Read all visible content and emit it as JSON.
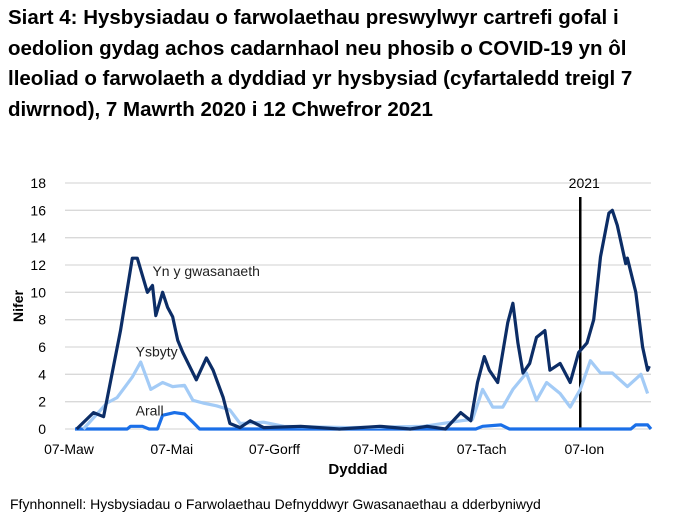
{
  "chart_data": {
    "type": "line",
    "title": "Siart 4: Hysbysiadau o farwolaethau preswylwyr cartrefi gofal i oedolion gydag achos cadarnhaol neu phosib o COVID-19 yn ôl lleoliad o farwolaeth a dyddiad yr hysbysiad (cyfartaledd treigl 7 diwrnod), 7 Mawrth 2020 i 12 Chwefror 2021",
    "xlabel": "Dyddiad",
    "ylabel": "Nifer",
    "xlim": [
      "2020-03-07",
      "2021-02-12"
    ],
    "ylim": [
      0,
      18
    ],
    "yticks": [
      0,
      2,
      4,
      6,
      8,
      10,
      12,
      14,
      16,
      18
    ],
    "xticks": [
      {
        "date": "2020-03-07",
        "label": "07-Maw"
      },
      {
        "date": "2020-05-07",
        "label": "07-Mai"
      },
      {
        "date": "2020-07-07",
        "label": "07-Gorff"
      },
      {
        "date": "2020-09-07",
        "label": "07-Medi"
      },
      {
        "date": "2020-11-07",
        "label": "07-Tach"
      },
      {
        "date": "2021-01-07",
        "label": "07-Ion"
      }
    ],
    "grid": "horizontal",
    "annotation": {
      "date": "2021-01-01",
      "label": "2021"
    },
    "series": [
      {
        "name": "Yn y gwasanaeth",
        "color": "#0c2d66",
        "label_at": {
          "date": "2020-04-22",
          "value": 11.2
        },
        "points": [
          [
            "2020-03-08",
            0
          ],
          [
            "2020-03-18",
            1.2
          ],
          [
            "2020-03-24",
            0.9
          ],
          [
            "2020-04-03",
            7.2
          ],
          [
            "2020-04-10",
            12.5
          ],
          [
            "2020-04-13",
            12.5
          ],
          [
            "2020-04-19",
            10
          ],
          [
            "2020-04-22",
            10.5
          ],
          [
            "2020-04-24",
            8.3
          ],
          [
            "2020-04-28",
            10
          ],
          [
            "2020-05-01",
            8.9
          ],
          [
            "2020-05-04",
            8.2
          ],
          [
            "2020-05-07",
            6.5
          ],
          [
            "2020-05-10",
            5.6
          ],
          [
            "2020-05-18",
            3.6
          ],
          [
            "2020-05-24",
            5.2
          ],
          [
            "2020-05-28",
            4.3
          ],
          [
            "2020-06-03",
            2.3
          ],
          [
            "2020-06-07",
            0.4
          ],
          [
            "2020-06-13",
            0.1
          ],
          [
            "2020-06-19",
            0.6
          ],
          [
            "2020-06-27",
            0.1
          ],
          [
            "2020-07-19",
            0.2
          ],
          [
            "2020-08-11",
            0
          ],
          [
            "2020-09-04",
            0.2
          ],
          [
            "2020-09-22",
            0
          ],
          [
            "2020-10-02",
            0.2
          ],
          [
            "2020-10-13",
            0
          ],
          [
            "2020-10-22",
            1.2
          ],
          [
            "2020-10-28",
            0.6
          ],
          [
            "2020-11-01",
            3.4
          ],
          [
            "2020-11-05",
            5.3
          ],
          [
            "2020-11-08",
            4.3
          ],
          [
            "2020-11-13",
            3.4
          ],
          [
            "2020-11-19",
            7.8
          ],
          [
            "2020-11-22",
            9.2
          ],
          [
            "2020-11-25",
            6.3
          ],
          [
            "2020-11-28",
            4.1
          ],
          [
            "2020-12-02",
            4.8
          ],
          [
            "2020-12-06",
            6.7
          ],
          [
            "2020-12-11",
            7.2
          ],
          [
            "2020-12-14",
            4.3
          ],
          [
            "2020-12-20",
            4.8
          ],
          [
            "2020-12-26",
            3.4
          ],
          [
            "2020-12-31",
            5.6
          ],
          [
            "2021-01-05",
            6.3
          ],
          [
            "2021-01-09",
            8
          ],
          [
            "2021-01-13",
            12.6
          ],
          [
            "2021-01-18",
            15.8
          ],
          [
            "2021-01-20",
            16
          ],
          [
            "2021-01-23",
            14.9
          ],
          [
            "2021-01-28",
            12.1
          ],
          [
            "2021-01-29",
            12.5
          ],
          [
            "2021-02-03",
            10
          ],
          [
            "2021-02-07",
            6
          ],
          [
            "2021-02-10",
            4.3
          ],
          [
            "2021-02-11",
            4.6
          ]
        ]
      },
      {
        "name": "Ysbyty",
        "color": "#a3cbf6",
        "label_at": {
          "date": "2020-04-12",
          "value": 5.3
        },
        "points": [
          [
            "2020-03-12",
            0
          ],
          [
            "2020-03-26",
            1.9
          ],
          [
            "2020-04-01",
            2.3
          ],
          [
            "2020-04-10",
            3.8
          ],
          [
            "2020-04-15",
            4.9
          ],
          [
            "2020-04-21",
            2.9
          ],
          [
            "2020-04-28",
            3.4
          ],
          [
            "2020-05-04",
            3.1
          ],
          [
            "2020-05-11",
            3.2
          ],
          [
            "2020-05-16",
            2.1
          ],
          [
            "2020-05-22",
            1.9
          ],
          [
            "2020-05-30",
            1.7
          ],
          [
            "2020-06-07",
            1.4
          ],
          [
            "2020-06-13",
            0.4
          ],
          [
            "2020-06-27",
            0.5
          ],
          [
            "2020-07-09",
            0.2
          ],
          [
            "2020-08-17",
            0.1
          ],
          [
            "2020-09-30",
            0.2
          ],
          [
            "2020-10-22",
            0.6
          ],
          [
            "2020-10-29",
            0.7
          ],
          [
            "2020-11-04",
            2.9
          ],
          [
            "2020-11-10",
            1.6
          ],
          [
            "2020-11-16",
            1.6
          ],
          [
            "2020-11-22",
            2.9
          ],
          [
            "2020-11-30",
            4.1
          ],
          [
            "2020-12-06",
            2.1
          ],
          [
            "2020-12-12",
            3.4
          ],
          [
            "2020-12-20",
            2.6
          ],
          [
            "2020-12-26",
            1.6
          ],
          [
            "2021-01-01",
            2.9
          ],
          [
            "2021-01-07",
            5
          ],
          [
            "2021-01-13",
            4.1
          ],
          [
            "2021-01-20",
            4.1
          ],
          [
            "2021-01-29",
            3.1
          ],
          [
            "2021-02-06",
            4.0
          ],
          [
            "2021-02-10",
            2.6
          ]
        ]
      },
      {
        "name": "Arall",
        "color": "#1a6fe8",
        "label_at": {
          "date": "2020-04-12",
          "value": 1.0
        },
        "points": [
          [
            "2020-03-07",
            0
          ],
          [
            "2020-04-07",
            0
          ],
          [
            "2020-04-09",
            0.2
          ],
          [
            "2020-04-16",
            0.2
          ],
          [
            "2020-04-20",
            0
          ],
          [
            "2020-04-25",
            0
          ],
          [
            "2020-04-28",
            1.0
          ],
          [
            "2020-05-05",
            1.2
          ],
          [
            "2020-05-11",
            1.1
          ],
          [
            "2020-05-16",
            0.5
          ],
          [
            "2020-05-20",
            0
          ],
          [
            "2020-10-31",
            0
          ],
          [
            "2020-11-04",
            0.2
          ],
          [
            "2020-11-15",
            0.3
          ],
          [
            "2020-11-20",
            0
          ],
          [
            "2021-01-31",
            0
          ],
          [
            "2021-02-03",
            0.3
          ],
          [
            "2021-02-10",
            0.3
          ],
          [
            "2021-02-12",
            0
          ]
        ]
      }
    ]
  },
  "source": "Ffynhonnell: Hysbysiadau o Farwolaethau Defnyddwyr Gwasanaethau a dderbyniwyd"
}
